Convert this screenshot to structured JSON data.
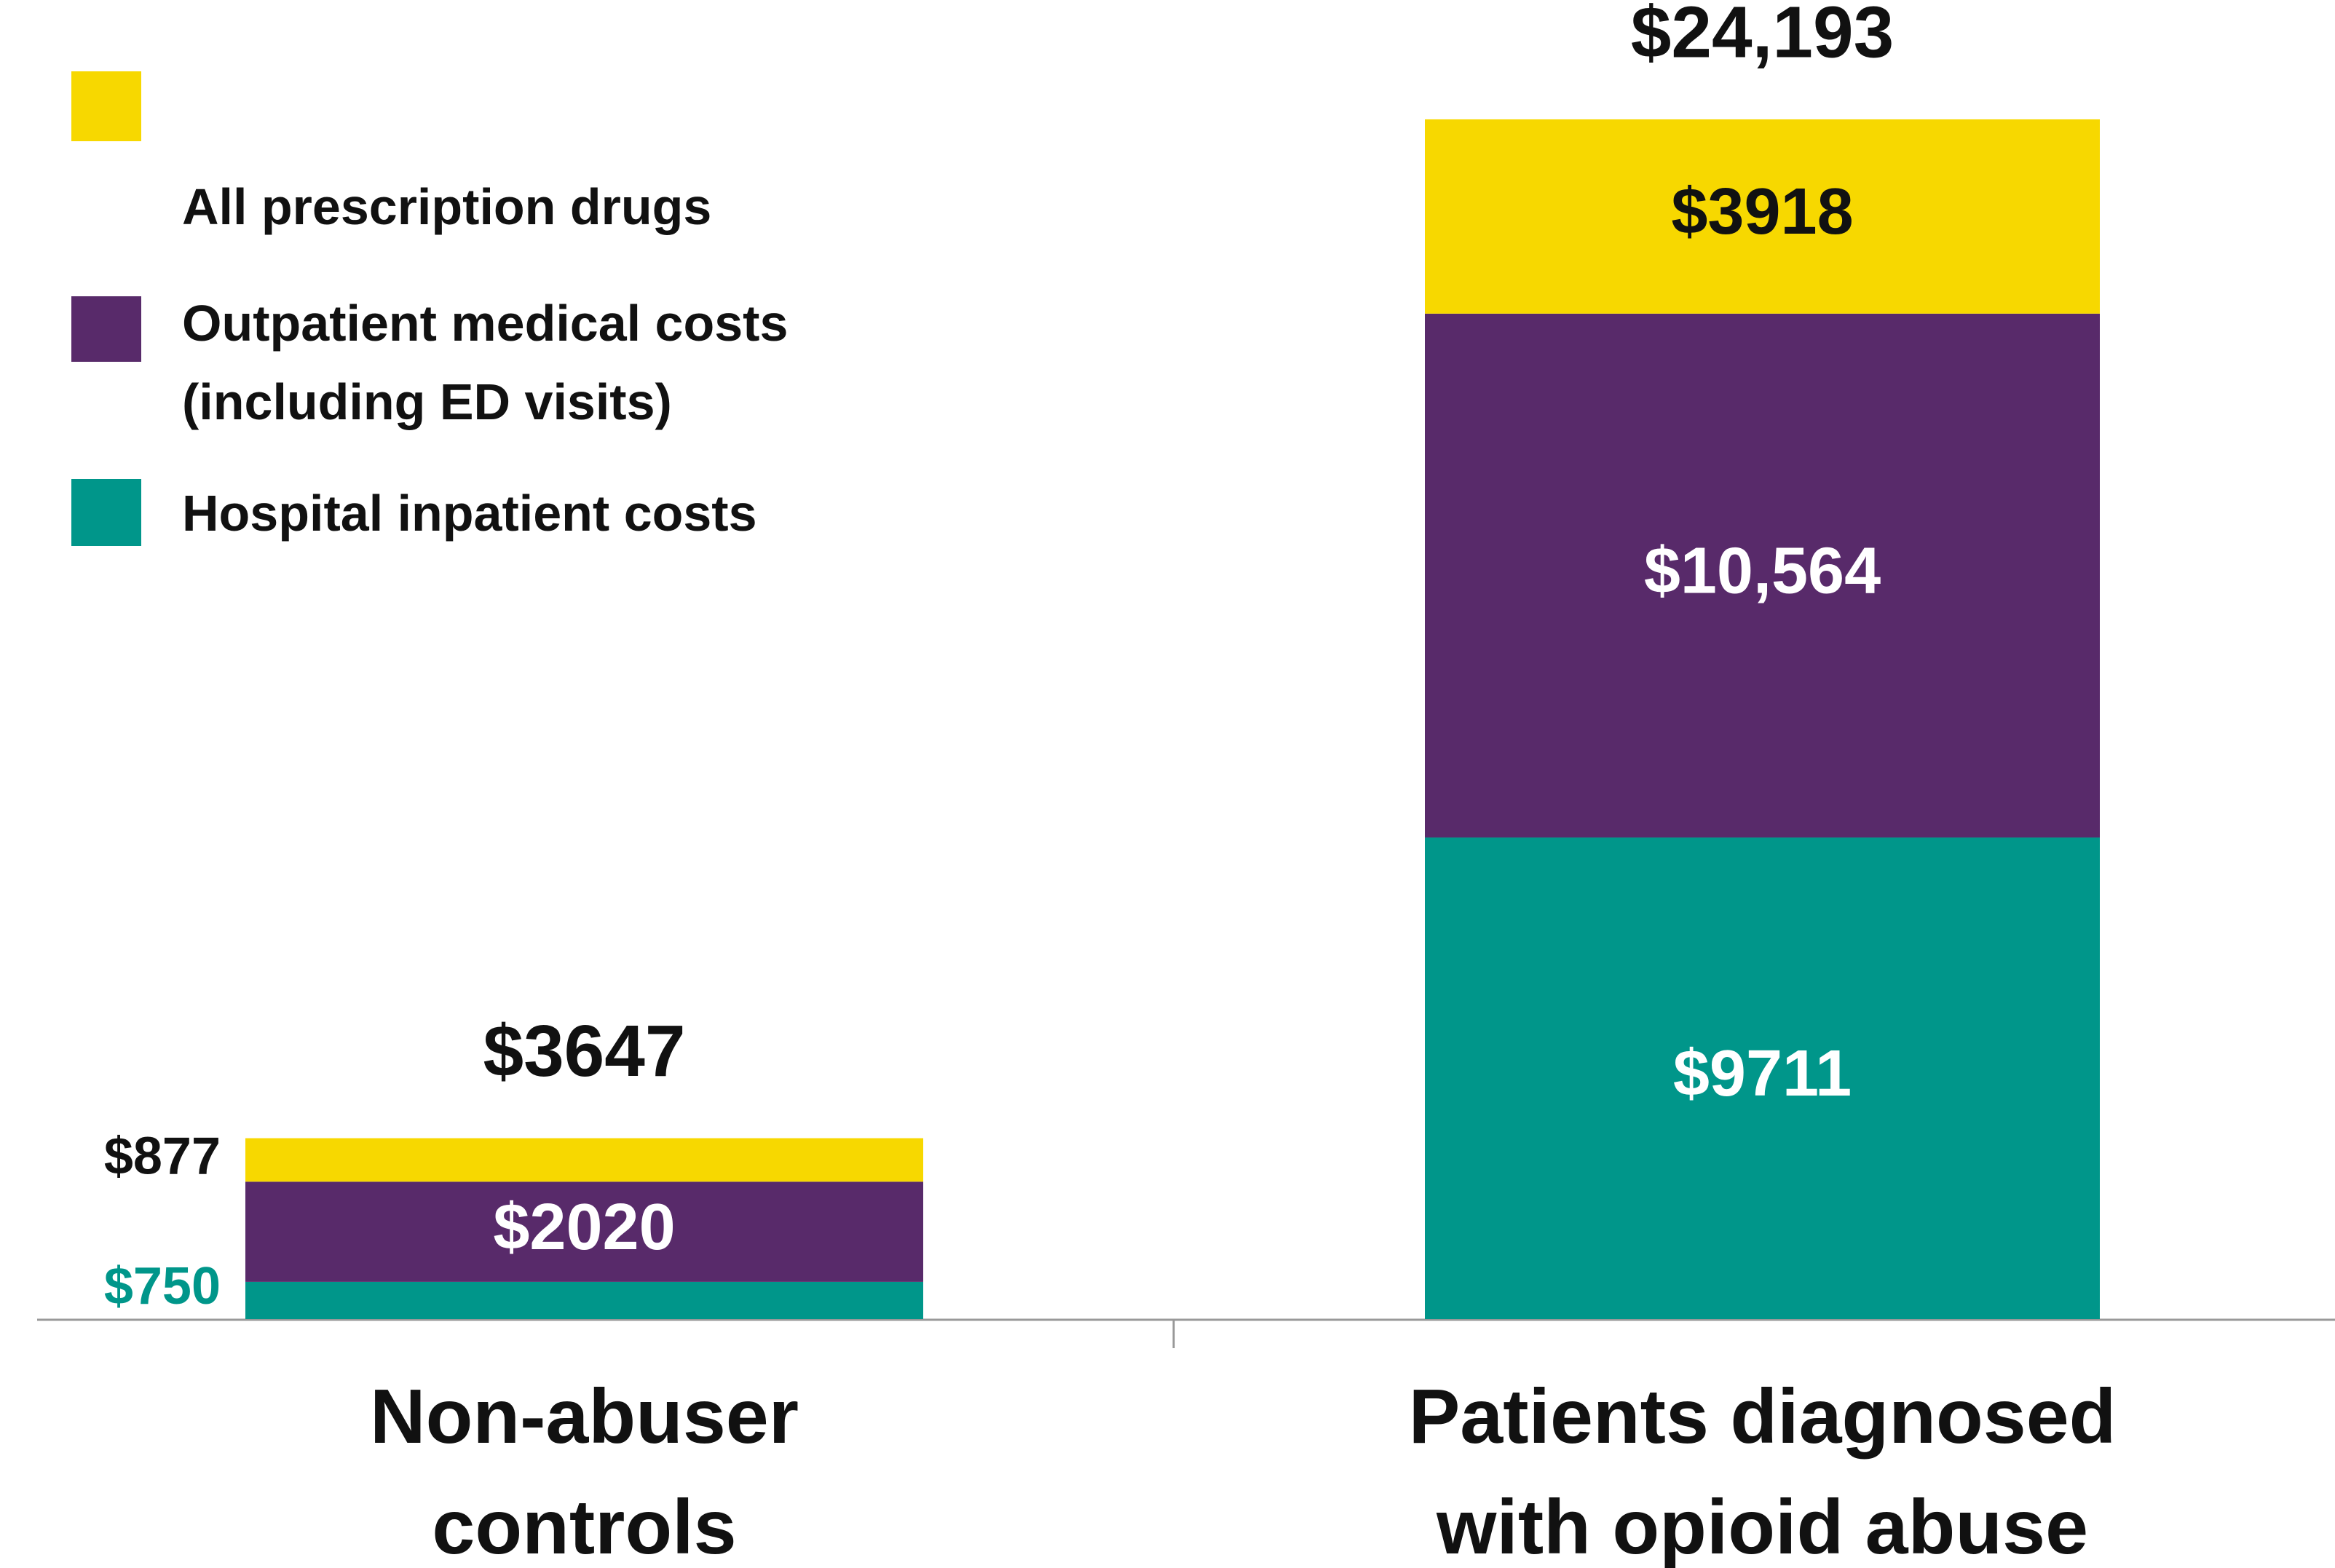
{
  "chart_data": {
    "type": "stacked_bar",
    "categories": [
      "Non-abuser controls",
      "Patients diagnosed with opioid abuse"
    ],
    "series": [
      {
        "name": "Hospital inpatient costs",
        "color": "#00968a",
        "values": [
          750,
          9711
        ],
        "value_labels": [
          "$750",
          "$9711"
        ]
      },
      {
        "name": "Outpatient medical costs (including  ED visits)",
        "color": "#582a6a",
        "values": [
          2020,
          10564
        ],
        "value_labels": [
          "$2020",
          "$10,564"
        ]
      },
      {
        "name": "All prescription drugs",
        "color": "#f7d800",
        "values": [
          877,
          3918
        ],
        "value_labels": [
          "$877",
          "$3918"
        ]
      }
    ],
    "total_labels": [
      "$3647",
      "$24,193"
    ],
    "ylim": [
      0,
      26600
    ],
    "legend": "upper left"
  }
}
